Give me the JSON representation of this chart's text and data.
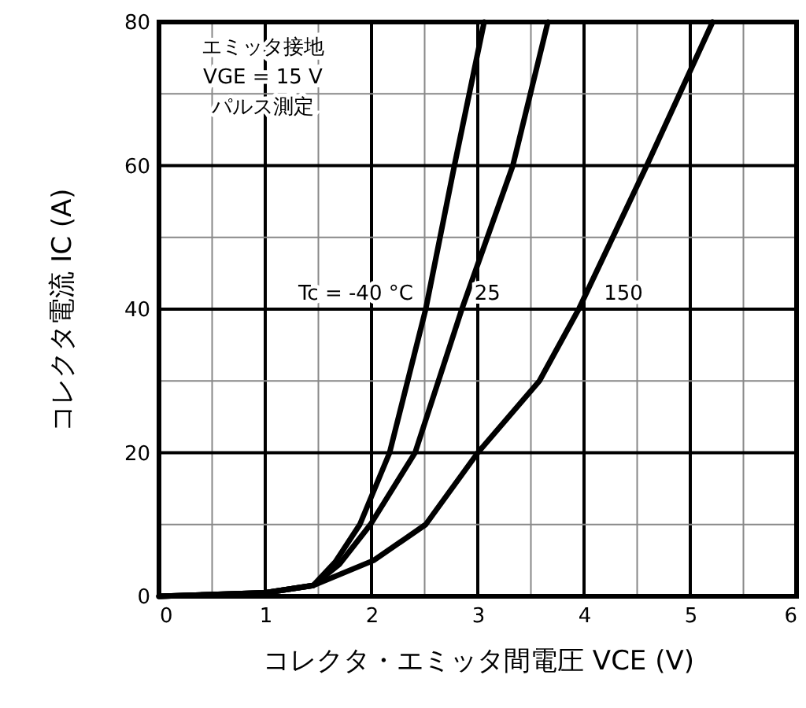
{
  "chart_data": {
    "type": "line",
    "xlabel": "コレクタ・エミッタ間電圧 VCE (V)",
    "ylabel": "コレクタ電流 IC (A)",
    "xlim": [
      0,
      6
    ],
    "ylim": [
      0,
      80
    ],
    "xticks": [
      0,
      {
        "value": 0.5,
        "label": null
      },
      1,
      {
        "value": 1.5,
        "label": null
      },
      2,
      {
        "value": 2.5,
        "label": null
      },
      3,
      {
        "value": 3.5,
        "label": null
      },
      4,
      {
        "value": 4.5,
        "label": null
      },
      5,
      {
        "value": 5.5,
        "label": null
      },
      6
    ],
    "yticks": [
      0,
      {
        "value": 10,
        "label": null
      },
      20,
      {
        "value": 30,
        "label": null
      },
      40,
      {
        "value": 50,
        "label": null
      },
      60,
      {
        "value": 70,
        "label": null
      },
      80
    ],
    "grid": true,
    "line_style": "solid",
    "marker": "none",
    "series": [
      {
        "color": "#000000",
        "x": [
          0,
          1,
          1.45,
          1.66,
          1.89,
          2.17,
          2.51,
          2.78,
          3.06
        ],
        "values": [
          0,
          0.5,
          1.5,
          4.8,
          10,
          20,
          40,
          60,
          80
        ]
      },
      {
        "color": "#000000",
        "x": [
          0,
          1,
          1.45,
          1.7,
          1.99,
          2.41,
          2.85,
          3.33,
          3.66
        ],
        "values": [
          0,
          0.5,
          1.5,
          4.5,
          10,
          20,
          40,
          60,
          80
        ]
      },
      {
        "color": "#000000",
        "x": [
          0,
          1,
          1.45,
          2.02,
          2.51,
          3.0,
          3.58,
          3.95,
          4.59,
          5.21
        ],
        "values": [
          0,
          0.5,
          1.5,
          5,
          10,
          20,
          30,
          40,
          60,
          80
        ]
      }
    ],
    "annotations": [
      "エミッタ接地",
      "VGE = 15 V",
      "パルス測定",
      {
        "text": "Tc = -40 °C",
        "x": 2.51,
        "y": 40
      },
      {
        "text": "25",
        "x": 2.85,
        "y": 40
      },
      {
        "text": "150",
        "x": 3.95,
        "y": 40
      }
    ]
  }
}
